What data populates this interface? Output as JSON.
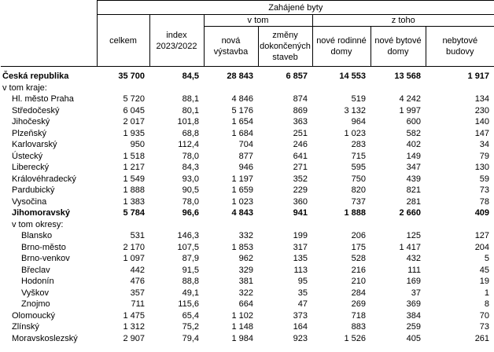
{
  "header": {
    "zahajene": "Zahájené byty",
    "celkem": "celkem",
    "index_l1": "index",
    "index_l2": "2023/2022",
    "v_tom": "v tom",
    "z_toho": "z toho",
    "nova_l1": "nová",
    "nova_l2": "výstavba",
    "zmeny_l1": "změny",
    "zmeny_l2": "dokončených",
    "zmeny_l3": "staveb",
    "rod_l1": "nové rodinné",
    "rod_l2": "domy",
    "byt_l1": "nové bytové",
    "byt_l2": "domy",
    "nebyt_l1": "nebytové",
    "nebyt_l2": "budovy"
  },
  "rows": [
    {
      "name": "Česká republika",
      "celkem": "35 700",
      "index": "84,5",
      "nova": "28 843",
      "zmeny": "6 857",
      "rod": "14 553",
      "byt": "13 568",
      "nebyt": "1 917"
    },
    {
      "name": "v tom kraje:",
      "celkem": "",
      "index": "",
      "nova": "",
      "zmeny": "",
      "rod": "",
      "byt": "",
      "nebyt": ""
    },
    {
      "name": "Hl. město Praha",
      "celkem": "5 720",
      "index": "88,1",
      "nova": "4 846",
      "zmeny": "874",
      "rod": "519",
      "byt": "4 242",
      "nebyt": "134"
    },
    {
      "name": "Středočeský",
      "celkem": "6 045",
      "index": "80,1",
      "nova": "5 176",
      "zmeny": "869",
      "rod": "3 132",
      "byt": "1 997",
      "nebyt": "230"
    },
    {
      "name": "Jihočeský",
      "celkem": "2 017",
      "index": "101,8",
      "nova": "1 654",
      "zmeny": "363",
      "rod": "964",
      "byt": "600",
      "nebyt": "140"
    },
    {
      "name": "Plzeňský",
      "celkem": "1 935",
      "index": "68,8",
      "nova": "1 684",
      "zmeny": "251",
      "rod": "1 023",
      "byt": "582",
      "nebyt": "147"
    },
    {
      "name": "Karlovarský",
      "celkem": "950",
      "index": "112,4",
      "nova": "704",
      "zmeny": "246",
      "rod": "283",
      "byt": "402",
      "nebyt": "34"
    },
    {
      "name": "Ústecký",
      "celkem": "1 518",
      "index": "78,0",
      "nova": "877",
      "zmeny": "641",
      "rod": "715",
      "byt": "149",
      "nebyt": "79"
    },
    {
      "name": "Liberecký",
      "celkem": "1 217",
      "index": "84,3",
      "nova": "946",
      "zmeny": "271",
      "rod": "595",
      "byt": "347",
      "nebyt": "130"
    },
    {
      "name": "Královéhradecký",
      "celkem": "1 549",
      "index": "93,0",
      "nova": "1 197",
      "zmeny": "352",
      "rod": "750",
      "byt": "439",
      "nebyt": "59"
    },
    {
      "name": "Pardubický",
      "celkem": "1 888",
      "index": "90,5",
      "nova": "1 659",
      "zmeny": "229",
      "rod": "820",
      "byt": "821",
      "nebyt": "73"
    },
    {
      "name": "Vysočina",
      "celkem": "1 383",
      "index": "78,0",
      "nova": "1 023",
      "zmeny": "360",
      "rod": "737",
      "byt": "281",
      "nebyt": "78"
    },
    {
      "name": "Jihomoravský",
      "celkem": "5 784",
      "index": "96,6",
      "nova": "4 843",
      "zmeny": "941",
      "rod": "1 888",
      "byt": "2 660",
      "nebyt": "409"
    },
    {
      "name": "v tom okresy:",
      "celkem": "",
      "index": "",
      "nova": "",
      "zmeny": "",
      "rod": "",
      "byt": "",
      "nebyt": ""
    },
    {
      "name": "Blansko",
      "celkem": "531",
      "index": "146,3",
      "nova": "332",
      "zmeny": "199",
      "rod": "206",
      "byt": "125",
      "nebyt": "127"
    },
    {
      "name": "Brno-město",
      "celkem": "2 170",
      "index": "107,5",
      "nova": "1 853",
      "zmeny": "317",
      "rod": "175",
      "byt": "1 417",
      "nebyt": "204"
    },
    {
      "name": "Brno-venkov",
      "celkem": "1 097",
      "index": "87,9",
      "nova": "962",
      "zmeny": "135",
      "rod": "528",
      "byt": "432",
      "nebyt": "5"
    },
    {
      "name": "Břeclav",
      "celkem": "442",
      "index": "91,5",
      "nova": "329",
      "zmeny": "113",
      "rod": "216",
      "byt": "111",
      "nebyt": "45"
    },
    {
      "name": "Hodonín",
      "celkem": "476",
      "index": "88,8",
      "nova": "381",
      "zmeny": "95",
      "rod": "210",
      "byt": "169",
      "nebyt": "19"
    },
    {
      "name": "Vyškov",
      "celkem": "357",
      "index": "49,1",
      "nova": "322",
      "zmeny": "35",
      "rod": "284",
      "byt": "37",
      "nebyt": "1"
    },
    {
      "name": "Znojmo",
      "celkem": "711",
      "index": "115,6",
      "nova": "664",
      "zmeny": "47",
      "rod": "269",
      "byt": "369",
      "nebyt": "8"
    },
    {
      "name": "Olomoucký",
      "celkem": "1 475",
      "index": "65,4",
      "nova": "1 102",
      "zmeny": "373",
      "rod": "718",
      "byt": "384",
      "nebyt": "70"
    },
    {
      "name": "Zlínský",
      "celkem": "1 312",
      "index": "75,2",
      "nova": "1 148",
      "zmeny": "164",
      "rod": "883",
      "byt": "259",
      "nebyt": "73"
    },
    {
      "name": "Moravskoslezský",
      "celkem": "2 907",
      "index": "79,4",
      "nova": "1 984",
      "zmeny": "923",
      "rod": "1 526",
      "byt": "405",
      "nebyt": "261"
    }
  ]
}
